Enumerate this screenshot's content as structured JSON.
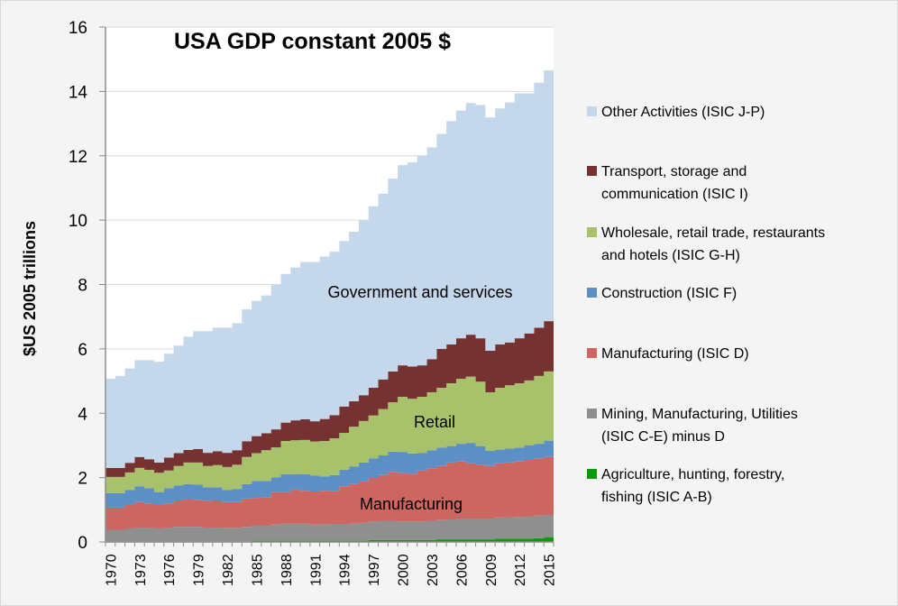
{
  "chart_data": {
    "type": "area",
    "stacked": true,
    "step": true,
    "title": "USA GDP constant 2005 $",
    "xlabel": "",
    "ylabel": "$US 2005 trillions",
    "ylim": [
      0,
      16
    ],
    "yticks": [
      "0",
      "2",
      "4",
      "6",
      "8",
      "10",
      "12",
      "14",
      "16"
    ],
    "xticks": [
      "1970",
      "1973",
      "1976",
      "1979",
      "1982",
      "1985",
      "1988",
      "1991",
      "1994",
      "1997",
      "2000",
      "2003",
      "2006",
      "2009",
      "2012",
      "2015"
    ],
    "grid": true,
    "legend_position": "right",
    "x": [
      1970,
      1971,
      1972,
      1973,
      1974,
      1975,
      1976,
      1977,
      1978,
      1979,
      1980,
      1981,
      1982,
      1983,
      1984,
      1985,
      1986,
      1987,
      1988,
      1989,
      1990,
      1991,
      1992,
      1993,
      1994,
      1995,
      1996,
      1997,
      1998,
      1999,
      2000,
      2001,
      2002,
      2003,
      2004,
      2005,
      2006,
      2007,
      2008,
      2009,
      2010,
      2011,
      2012,
      2013,
      2014,
      2015
    ],
    "series": [
      {
        "name": "Agriculture, hunting, forestry, fishing (ISIC A-B)",
        "color": "#0a9a0a",
        "values": [
          0.02,
          0.02,
          0.02,
          0.02,
          0.02,
          0.02,
          0.02,
          0.02,
          0.02,
          0.02,
          0.02,
          0.02,
          0.02,
          0.02,
          0.02,
          0.04,
          0.04,
          0.04,
          0.04,
          0.04,
          0.04,
          0.04,
          0.04,
          0.04,
          0.04,
          0.04,
          0.04,
          0.06,
          0.06,
          0.06,
          0.06,
          0.06,
          0.06,
          0.06,
          0.08,
          0.08,
          0.08,
          0.08,
          0.08,
          0.08,
          0.1,
          0.1,
          0.1,
          0.1,
          0.12,
          0.15
        ]
      },
      {
        "name": "Mining, Manufacturing, Utilities (ISIC C-E) minus D",
        "color": "#8f8f8f",
        "values": [
          0.36,
          0.36,
          0.4,
          0.43,
          0.43,
          0.4,
          0.43,
          0.45,
          0.45,
          0.45,
          0.43,
          0.43,
          0.42,
          0.42,
          0.45,
          0.48,
          0.48,
          0.5,
          0.53,
          0.53,
          0.53,
          0.5,
          0.51,
          0.52,
          0.52,
          0.53,
          0.56,
          0.58,
          0.6,
          0.6,
          0.58,
          0.58,
          0.58,
          0.6,
          0.6,
          0.62,
          0.65,
          0.65,
          0.65,
          0.65,
          0.66,
          0.67,
          0.68,
          0.7,
          0.7,
          0.69
        ]
      },
      {
        "name": "Manufacturing (ISIC D)",
        "color": "#cd6660",
        "values": [
          0.69,
          0.69,
          0.73,
          0.79,
          0.75,
          0.73,
          0.75,
          0.82,
          0.86,
          0.84,
          0.83,
          0.84,
          0.8,
          0.8,
          0.88,
          0.85,
          0.86,
          1.01,
          0.98,
          1.06,
          1.02,
          1.03,
          1.04,
          1.02,
          1.17,
          1.23,
          1.28,
          1.35,
          1.42,
          1.52,
          1.5,
          1.48,
          1.58,
          1.63,
          1.68,
          1.77,
          1.77,
          1.72,
          1.67,
          1.63,
          1.69,
          1.7,
          1.72,
          1.75,
          1.78,
          1.8
        ]
      },
      {
        "name": "Construction (ISIC F)",
        "color": "#5b8fc6",
        "values": [
          0.45,
          0.45,
          0.47,
          0.49,
          0.47,
          0.4,
          0.47,
          0.47,
          0.47,
          0.47,
          0.42,
          0.41,
          0.37,
          0.41,
          0.45,
          0.53,
          0.52,
          0.46,
          0.56,
          0.48,
          0.51,
          0.49,
          0.45,
          0.5,
          0.52,
          0.54,
          0.59,
          0.61,
          0.61,
          0.63,
          0.66,
          0.63,
          0.54,
          0.56,
          0.57,
          0.51,
          0.55,
          0.63,
          0.58,
          0.47,
          0.42,
          0.43,
          0.43,
          0.45,
          0.45,
          0.51
        ]
      },
      {
        "name": "Wholesale, retail trade, restaurants and hotels (ISIC G-H)",
        "color": "#a8c26c",
        "values": [
          0.5,
          0.5,
          0.54,
          0.57,
          0.57,
          0.6,
          0.55,
          0.6,
          0.67,
          0.69,
          0.66,
          0.69,
          0.72,
          0.75,
          0.84,
          0.86,
          0.95,
          0.93,
          1.03,
          1.05,
          1.07,
          1.06,
          1.1,
          1.14,
          1.14,
          1.24,
          1.29,
          1.33,
          1.44,
          1.53,
          1.71,
          1.7,
          1.75,
          1.8,
          1.86,
          1.95,
          2.02,
          2.06,
          2.0,
          1.82,
          1.92,
          1.97,
          2.0,
          2.02,
          2.11,
          2.15
        ]
      },
      {
        "name": "Transport, storage and communication (ISIC I)",
        "color": "#763230",
        "values": [
          0.28,
          0.28,
          0.3,
          0.34,
          0.33,
          0.32,
          0.4,
          0.4,
          0.39,
          0.42,
          0.41,
          0.43,
          0.44,
          0.45,
          0.49,
          0.53,
          0.53,
          0.56,
          0.57,
          0.62,
          0.64,
          0.63,
          0.68,
          0.72,
          0.82,
          0.79,
          0.8,
          0.86,
          0.92,
          0.96,
          0.98,
          1.0,
          0.98,
          1.03,
          1.21,
          1.21,
          1.26,
          1.3,
          1.35,
          1.29,
          1.35,
          1.33,
          1.4,
          1.46,
          1.5,
          1.56
        ]
      },
      {
        "name": "Other Activities (ISIC J-P)",
        "color": "#c5d7ea",
        "values": [
          2.77,
          2.86,
          2.93,
          3.01,
          3.08,
          3.13,
          3.23,
          3.34,
          3.52,
          3.66,
          3.78,
          3.84,
          3.89,
          3.95,
          4.1,
          4.2,
          4.28,
          4.49,
          4.62,
          4.75,
          4.89,
          4.95,
          5.05,
          5.08,
          5.14,
          5.27,
          5.44,
          5.64,
          5.77,
          5.99,
          6.22,
          6.35,
          6.51,
          6.58,
          6.68,
          6.94,
          7.07,
          7.2,
          7.25,
          7.25,
          7.33,
          7.46,
          7.61,
          7.46,
          7.61,
          7.79
        ]
      }
    ],
    "legend_order": [
      6,
      5,
      4,
      3,
      2,
      1,
      0
    ],
    "annotations": [
      "Government and services",
      "Retail",
      "Manufacturing"
    ]
  },
  "colors": {
    "background": "#f4f4f4",
    "plot_background": "#ffffff",
    "gridline": "#d9d9d9",
    "axis": "#8c8c8c"
  }
}
